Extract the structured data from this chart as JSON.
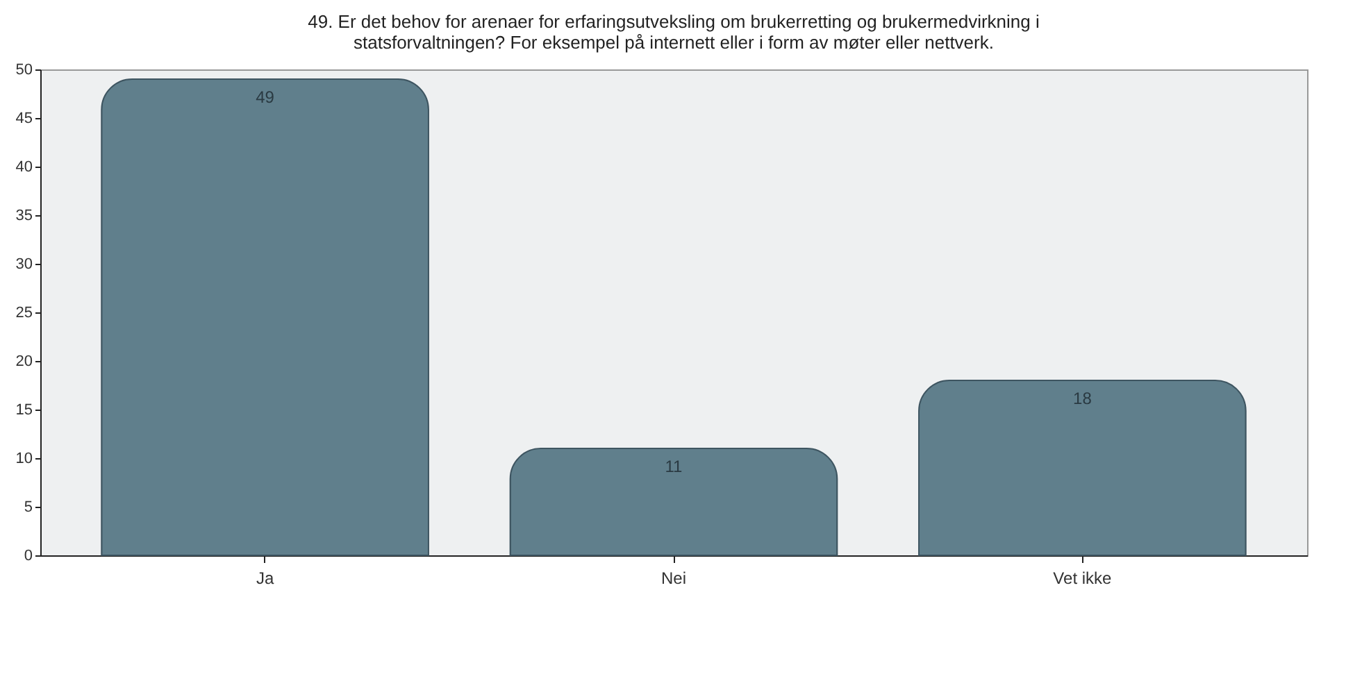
{
  "chart_data": {
    "type": "bar",
    "title": "49. Er det behov for arenaer for erfaringsutveksling om brukerretting og brukermedvirkning i\nstatsforvaltningen? For eksempel på internett eller i form av møter eller nettverk.",
    "categories": [
      "Ja",
      "Nei",
      "Vet ikke"
    ],
    "values": [
      49,
      11,
      18
    ],
    "color": "#607f8c",
    "ylim": [
      0,
      50
    ],
    "yticks": [
      0,
      5,
      10,
      15,
      20,
      25,
      30,
      35,
      40,
      45,
      50
    ],
    "data_labels": true,
    "grid": false
  }
}
